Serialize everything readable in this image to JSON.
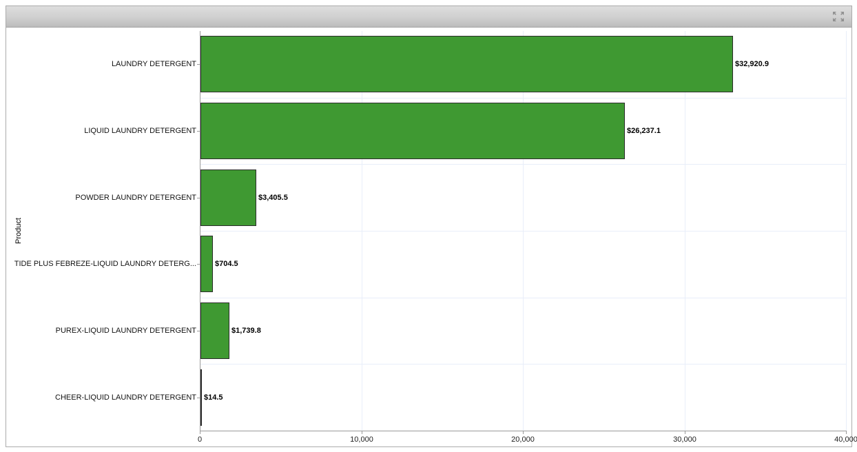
{
  "widget": {
    "maximize_icon": "maximize-icon"
  },
  "chart_data": {
    "type": "bar",
    "orientation": "horizontal",
    "title": "",
    "xlabel": "",
    "ylabel": "Product",
    "categories": [
      "LAUNDRY DETERGENT",
      "LIQUID LAUNDRY DETERGENT",
      "POWDER LAUNDRY DETERGENT",
      "TIDE PLUS FEBREZE-LIQUID LAUNDRY DETERG...",
      "PUREX-LIQUID LAUNDRY DETERGENT",
      "CHEER-LIQUID LAUNDRY DETERGENT"
    ],
    "values": [
      32920.9,
      26237.1,
      3405.5,
      704.5,
      1739.8,
      14.5
    ],
    "value_labels": [
      "$32,920.9",
      "$26,237.1",
      "$3,405.5",
      "$704.5",
      "$1,739.8",
      "$14.5"
    ],
    "xlim": [
      0,
      40000
    ],
    "x_ticks": [
      0,
      10000,
      20000,
      30000,
      40000
    ],
    "x_tick_labels": [
      "0",
      "10,000",
      "20,000",
      "30,000",
      "40,000"
    ],
    "grid": true,
    "legend": false,
    "colors": {
      "bar_fill": "#3F9932",
      "bar_border": "#2b2b2b",
      "grid_line": "#e8eef9",
      "axis_line": "#9a9a9a"
    }
  }
}
